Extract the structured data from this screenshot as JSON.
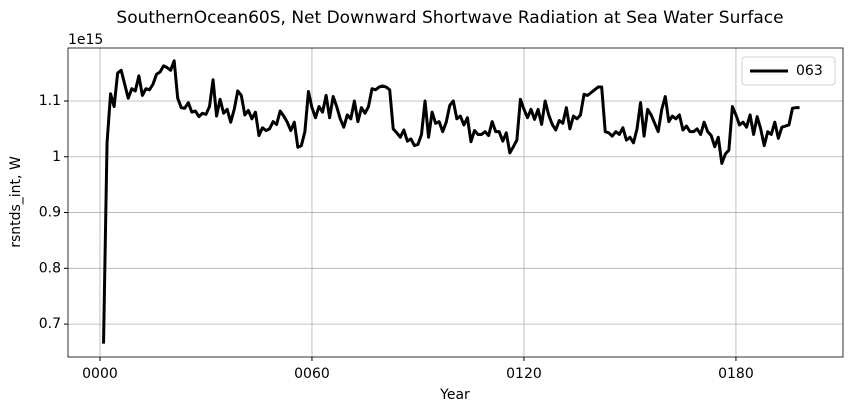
{
  "chart_data": {
    "type": "line",
    "title": "SouthernOcean60S, Net Downward Shortwave Radiation at Sea Water Surface",
    "xlabel": "Year",
    "ylabel": "rsntds_int, W",
    "y_offset_label": "1e15",
    "x": [
      1,
      2,
      3,
      4,
      5,
      6,
      7,
      8,
      9,
      10,
      11,
      12,
      13,
      14,
      15,
      16,
      17,
      18,
      19,
      20,
      21,
      22,
      23,
      24,
      25,
      26,
      27,
      28,
      29,
      30,
      31,
      32,
      33,
      34,
      35,
      36,
      37,
      38,
      39,
      40,
      41,
      42,
      43,
      44,
      45,
      46,
      47,
      48,
      49,
      50,
      51,
      52,
      53,
      54,
      55,
      56,
      57,
      58,
      59,
      60,
      61,
      62,
      63,
      64,
      65,
      66,
      67,
      68,
      69,
      70,
      71,
      72,
      73,
      74,
      75,
      76,
      77,
      78,
      79,
      80,
      81,
      82,
      83,
      84,
      85,
      86,
      87,
      88,
      89,
      90,
      91,
      92,
      93,
      94,
      95,
      96,
      97,
      98,
      99,
      100,
      101,
      102,
      103,
      104,
      105,
      106,
      107,
      108,
      109,
      110,
      111,
      112,
      113,
      114,
      115,
      116,
      117,
      118,
      119,
      120,
      121,
      122,
      123,
      124,
      125,
      126,
      127,
      128,
      129,
      130,
      131,
      132,
      133,
      134,
      135,
      136,
      137,
      138,
      139,
      140,
      141,
      142,
      143,
      144,
      145,
      146,
      147,
      148,
      149,
      150,
      151,
      152,
      153,
      154,
      155,
      156,
      157,
      158,
      159,
      160,
      161,
      162,
      163,
      164,
      165,
      166,
      167,
      168,
      169,
      170,
      171,
      172,
      173,
      174,
      175,
      176,
      177,
      178,
      179,
      180,
      181,
      182,
      183,
      184,
      185,
      186,
      187,
      188,
      189,
      190,
      191,
      192,
      193,
      194,
      195,
      196,
      197,
      198
    ],
    "series": [
      {
        "name": "063",
        "color": "#000000",
        "values": [
          0.665,
          1.025,
          1.113,
          1.09,
          1.15,
          1.155,
          1.13,
          1.105,
          1.122,
          1.118,
          1.145,
          1.11,
          1.122,
          1.12,
          1.13,
          1.148,
          1.152,
          1.163,
          1.16,
          1.155,
          1.172,
          1.105,
          1.088,
          1.087,
          1.097,
          1.08,
          1.082,
          1.072,
          1.078,
          1.076,
          1.09,
          1.138,
          1.073,
          1.103,
          1.078,
          1.085,
          1.062,
          1.085,
          1.118,
          1.11,
          1.075,
          1.083,
          1.068,
          1.08,
          1.038,
          1.052,
          1.047,
          1.05,
          1.063,
          1.058,
          1.082,
          1.073,
          1.062,
          1.047,
          1.062,
          1.017,
          1.02,
          1.045,
          1.117,
          1.088,
          1.07,
          1.09,
          1.08,
          1.11,
          1.07,
          1.108,
          1.09,
          1.068,
          1.053,
          1.075,
          1.068,
          1.1,
          1.063,
          1.088,
          1.078,
          1.09,
          1.122,
          1.12,
          1.125,
          1.127,
          1.125,
          1.12,
          1.05,
          1.043,
          1.035,
          1.048,
          1.028,
          1.032,
          1.02,
          1.022,
          1.04,
          1.1,
          1.035,
          1.08,
          1.06,
          1.063,
          1.045,
          1.062,
          1.092,
          1.1,
          1.068,
          1.073,
          1.057,
          1.07,
          1.027,
          1.047,
          1.04,
          1.04,
          1.045,
          1.038,
          1.063,
          1.045,
          1.045,
          1.028,
          1.043,
          1.007,
          1.018,
          1.03,
          1.103,
          1.085,
          1.07,
          1.085,
          1.067,
          1.085,
          1.058,
          1.1,
          1.075,
          1.058,
          1.048,
          1.065,
          1.06,
          1.088,
          1.05,
          1.073,
          1.068,
          1.075,
          1.112,
          1.11,
          1.115,
          1.12,
          1.125,
          1.125,
          1.045,
          1.043,
          1.037,
          1.045,
          1.04,
          1.052,
          1.03,
          1.035,
          1.025,
          1.05,
          1.097,
          1.037,
          1.085,
          1.075,
          1.06,
          1.045,
          1.085,
          1.108,
          1.063,
          1.073,
          1.068,
          1.075,
          1.048,
          1.055,
          1.045,
          1.045,
          1.05,
          1.04,
          1.062,
          1.045,
          1.038,
          1.018,
          1.035,
          0.988,
          1.005,
          1.012,
          1.09,
          1.075,
          1.057,
          1.062,
          1.053,
          1.075,
          1.04,
          1.072,
          1.05,
          1.02,
          1.045,
          1.04,
          1.062,
          1.033,
          1.053,
          1.055,
          1.057,
          1.087,
          1.088,
          1.088
        ]
      }
    ],
    "xlim": [
      -9.05,
      210.3
    ],
    "xticks": [
      {
        "value": 0,
        "label": "0000"
      },
      {
        "value": 60,
        "label": "0060"
      },
      {
        "value": 120,
        "label": "0120"
      },
      {
        "value": 180,
        "label": "0180"
      }
    ],
    "ylim": [
      0.641,
      1.195
    ],
    "yticks": [
      0.7,
      0.8,
      0.9,
      1.0,
      1.1
    ],
    "grid": true,
    "legend": "upper right"
  }
}
